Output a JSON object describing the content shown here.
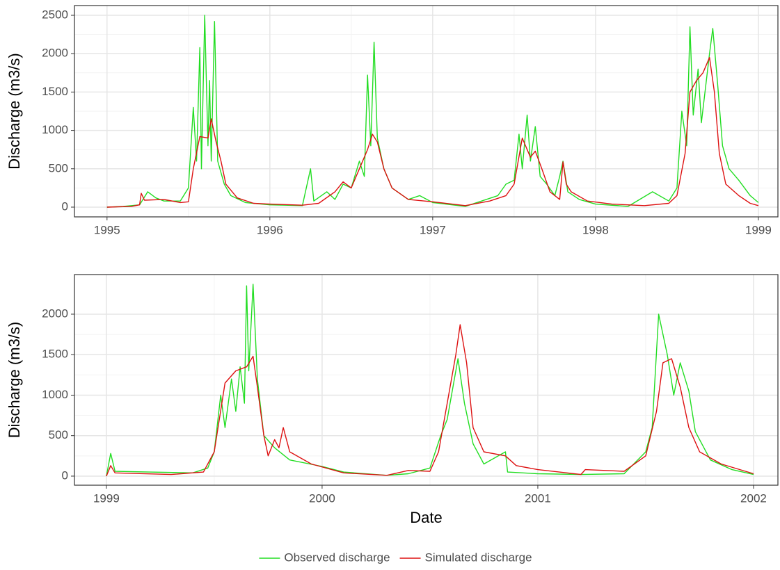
{
  "chart_data": [
    {
      "type": "line",
      "y_label": "Discharge (m3/s)",
      "xlim": [
        1994.8,
        1999.12
      ],
      "xticks": [
        1995,
        1996,
        1997,
        1998,
        1999
      ],
      "ylim": [
        -127,
        2627
      ],
      "yticks": [
        0,
        500,
        1000,
        1500,
        2000,
        2500
      ],
      "grid": true,
      "series": [
        {
          "color": "#22dd22",
          "x": [
            1995.0,
            1995.1,
            1995.2,
            1995.25,
            1995.3,
            1995.35,
            1995.45,
            1995.5,
            1995.53,
            1995.55,
            1995.57,
            1995.58,
            1995.6,
            1995.62,
            1995.63,
            1995.64,
            1995.66,
            1995.68,
            1995.72,
            1995.76,
            1995.85,
            1996.0,
            1996.2,
            1996.25,
            1996.27,
            1996.35,
            1996.4,
            1996.45,
            1996.5,
            1996.55,
            1996.58,
            1996.6,
            1996.62,
            1996.64,
            1996.66,
            1996.7,
            1996.75,
            1996.85,
            1996.92,
            1997.0,
            1997.2,
            1997.3,
            1997.4,
            1997.45,
            1997.5,
            1997.53,
            1997.55,
            1997.58,
            1997.6,
            1997.63,
            1997.66,
            1997.7,
            1997.75,
            1997.78,
            1997.8,
            1997.83,
            1997.9,
            1998.0,
            1998.2,
            1998.35,
            1998.45,
            1998.5,
            1998.53,
            1998.56,
            1998.58,
            1998.6,
            1998.63,
            1998.65,
            1998.7,
            1998.72,
            1998.75,
            1998.78,
            1998.82,
            1998.88,
            1998.95,
            1999.0
          ],
          "values": [
            0,
            10,
            30,
            200,
            120,
            80,
            80,
            250,
            1300,
            600,
            2080,
            500,
            2500,
            800,
            1650,
            600,
            2420,
            600,
            300,
            150,
            60,
            30,
            20,
            500,
            80,
            200,
            100,
            300,
            250,
            600,
            400,
            1720,
            800,
            2150,
            900,
            500,
            250,
            100,
            150,
            60,
            10,
            80,
            150,
            300,
            350,
            950,
            500,
            1200,
            600,
            1050,
            400,
            300,
            150,
            400,
            600,
            200,
            100,
            40,
            10,
            200,
            80,
            250,
            1250,
            800,
            2350,
            1200,
            1800,
            1100,
            2000,
            2330,
            1600,
            800,
            500,
            350,
            150,
            60
          ]
        },
        {
          "color": "#dd1111",
          "x": [
            1995.0,
            1995.15,
            1995.2,
            1995.21,
            1995.23,
            1995.35,
            1995.45,
            1995.5,
            1995.53,
            1995.57,
            1995.62,
            1995.64,
            1995.67,
            1995.7,
            1995.73,
            1995.8,
            1995.9,
            1996.0,
            1996.2,
            1996.3,
            1996.4,
            1996.45,
            1996.5,
            1996.55,
            1996.6,
            1996.63,
            1996.66,
            1996.7,
            1996.75,
            1996.85,
            1997.0,
            1997.2,
            1997.35,
            1997.45,
            1997.5,
            1997.55,
            1997.6,
            1997.63,
            1997.67,
            1997.72,
            1997.78,
            1997.8,
            1997.82,
            1997.85,
            1997.95,
            1998.1,
            1998.3,
            1998.45,
            1998.5,
            1998.55,
            1998.58,
            1998.62,
            1998.66,
            1998.7,
            1998.73,
            1998.76,
            1998.8,
            1998.88,
            1998.95,
            1999.0
          ],
          "values": [
            0,
            10,
            30,
            180,
            90,
            100,
            60,
            70,
            500,
            920,
            900,
            1150,
            850,
            600,
            300,
            120,
            50,
            40,
            25,
            50,
            200,
            330,
            250,
            500,
            750,
            950,
            850,
            500,
            250,
            100,
            70,
            20,
            80,
            150,
            300,
            900,
            650,
            730,
            500,
            200,
            100,
            590,
            300,
            200,
            80,
            40,
            20,
            50,
            150,
            700,
            1500,
            1650,
            1750,
            1950,
            1500,
            700,
            300,
            150,
            50,
            20
          ]
        }
      ]
    },
    {
      "type": "line",
      "x_label": "Date",
      "y_label": "Discharge (m3/s)",
      "xlim": [
        1998.852,
        2002.113
      ],
      "xticks": [
        1999,
        2000,
        2001,
        2002
      ],
      "ylim": [
        -112,
        2489
      ],
      "yticks": [
        0,
        500,
        1000,
        1500,
        2000
      ],
      "grid": true,
      "series": [
        {
          "name": "Observed discharge",
          "color": "#22dd22",
          "x": [
            1999.0,
            1999.02,
            1999.04,
            1999.2,
            1999.4,
            1999.47,
            1999.5,
            1999.53,
            1999.55,
            1999.58,
            1999.6,
            1999.62,
            1999.64,
            1999.65,
            1999.66,
            1999.68,
            1999.7,
            1999.73,
            1999.78,
            1999.85,
            2000.0,
            2000.1,
            2000.3,
            2000.4,
            2000.5,
            2000.55,
            2000.58,
            2000.6,
            2000.63,
            2000.66,
            2000.7,
            2000.75,
            2000.85,
            2000.86,
            2001.0,
            2001.2,
            2001.4,
            2001.5,
            2001.53,
            2001.56,
            2001.6,
            2001.63,
            2001.66,
            2001.7,
            2001.73,
            2001.8,
            2001.9,
            2002.0
          ],
          "values": [
            0,
            280,
            60,
            50,
            40,
            100,
            300,
            1000,
            600,
            1200,
            800,
            1350,
            900,
            2350,
            1300,
            2370,
            1200,
            500,
            350,
            200,
            120,
            50,
            10,
            30,
            100,
            500,
            700,
            1000,
            1450,
            900,
            400,
            150,
            300,
            50,
            30,
            20,
            30,
            300,
            600,
            2000,
            1500,
            1000,
            1400,
            1050,
            550,
            200,
            80,
            20
          ]
        },
        {
          "name": "Simulated discharge",
          "color": "#dd1111",
          "x": [
            1999.0,
            1999.02,
            1999.04,
            1999.3,
            1999.45,
            1999.5,
            1999.55,
            1999.6,
            1999.65,
            1999.68,
            1999.7,
            1999.73,
            1999.75,
            1999.78,
            1999.8,
            1999.82,
            1999.85,
            1999.95,
            2000.1,
            2000.3,
            2000.4,
            2000.5,
            2000.54,
            2000.58,
            2000.62,
            2000.64,
            2000.67,
            2000.7,
            2000.75,
            2000.85,
            2000.9,
            2001.0,
            2001.2,
            2001.22,
            2001.4,
            2001.5,
            2001.55,
            2001.58,
            2001.62,
            2001.66,
            2001.7,
            2001.75,
            2001.85,
            2002.0
          ],
          "values": [
            0,
            130,
            40,
            20,
            50,
            300,
            1150,
            1300,
            1350,
            1480,
            1100,
            500,
            250,
            450,
            350,
            600,
            300,
            150,
            40,
            10,
            70,
            60,
            300,
            900,
            1500,
            1870,
            1400,
            600,
            300,
            250,
            130,
            80,
            20,
            80,
            60,
            250,
            800,
            1400,
            1450,
            1100,
            600,
            300,
            150,
            30
          ]
        }
      ]
    }
  ]
}
